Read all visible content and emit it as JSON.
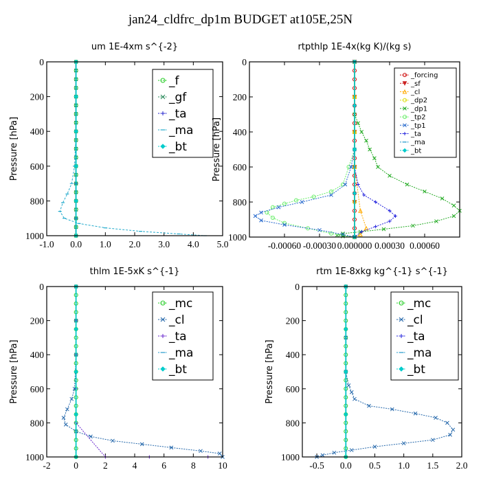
{
  "title": "jan24_cldfrc_dp1m  BUDGET at105E,25N",
  "chart_data": [
    {
      "type": "line",
      "title": "um  1E-4xm s^{-2}",
      "ylabel": "Pressure [hPa]",
      "xlim": [
        -1.0,
        5.0
      ],
      "xticks": [
        -1.0,
        0.0,
        1.0,
        2.0,
        3.0,
        4.0,
        5.0
      ],
      "xticklabels": [
        "-1.0",
        "0.0",
        "1.0",
        "2.0",
        "3.0",
        "4.0",
        "5.0"
      ],
      "ylim": [
        1000,
        0
      ],
      "yticks": [
        0,
        200,
        400,
        600,
        800,
        1000
      ],
      "legend_font": 17,
      "series": [
        {
          "name": "_f",
          "color": "#22cc22",
          "marker": "o",
          "x": [
            0,
            0,
            0,
            0,
            0,
            0,
            0,
            0,
            0,
            0,
            0,
            0,
            0,
            0,
            0,
            0,
            0,
            0,
            0,
            0,
            0
          ],
          "y": [
            0,
            50,
            100,
            150,
            200,
            250,
            300,
            350,
            400,
            450,
            500,
            550,
            600,
            650,
            700,
            750,
            800,
            850,
            900,
            950,
            1000
          ]
        },
        {
          "name": "_gf",
          "color": "#2a8a5a",
          "marker": "x",
          "x": [
            0,
            0,
            0,
            0,
            0,
            0,
            0,
            0,
            0,
            0,
            0,
            0,
            0,
            0,
            0,
            0,
            0,
            0,
            0,
            0,
            0
          ],
          "y": [
            0,
            50,
            100,
            150,
            200,
            250,
            300,
            350,
            400,
            450,
            500,
            550,
            600,
            650,
            700,
            750,
            800,
            850,
            900,
            950,
            1000
          ]
        },
        {
          "name": "_ta",
          "color": "#2222cc",
          "marker": "+",
          "x": [
            0,
            0,
            0,
            0,
            0,
            0,
            0,
            0
          ],
          "y": [
            0,
            200,
            400,
            600,
            700,
            800,
            900,
            1000
          ]
        },
        {
          "name": "_ma",
          "color": "#22aacc",
          "marker": "-",
          "x": [
            0,
            0,
            0,
            -0.05,
            -0.15,
            -0.3,
            -0.45,
            -0.55,
            -0.4,
            0.1,
            1.0,
            2.2,
            3.5,
            4.4
          ],
          "y": [
            0,
            200,
            400,
            600,
            700,
            760,
            810,
            860,
            900,
            930,
            955,
            975,
            990,
            1000
          ]
        },
        {
          "name": "_bt",
          "color": "#00cccc",
          "marker": "D",
          "x": [
            0,
            0,
            0,
            0,
            0,
            0
          ],
          "y": [
            0,
            200,
            400,
            600,
            800,
            1000
          ]
        }
      ]
    },
    {
      "type": "line",
      "title": "rtpthlp  1E-4x(kg K)/(kg s)",
      "ylabel": "Pressure [hPa]",
      "xlim": [
        -0.0009,
        0.0009
      ],
      "xticks": [
        -0.0006,
        -0.0003,
        0.0,
        0.0003,
        0.0006
      ],
      "xticklabels": [
        "-0.00060",
        "-0.00030",
        "0.000000",
        "0.00030",
        "0.00060"
      ],
      "ylim": [
        1000,
        0
      ],
      "yticks": [
        0,
        200,
        400,
        600,
        800,
        1000
      ],
      "legend_font": 10,
      "series": [
        {
          "name": "_forcing",
          "color": "#cc0000",
          "marker": "o",
          "x": [
            0,
            0,
            0,
            0,
            0,
            0,
            0,
            0,
            0,
            0,
            0,
            0,
            0,
            0,
            0,
            0,
            0,
            0,
            0,
            0,
            0
          ],
          "y": [
            0,
            50,
            100,
            150,
            200,
            250,
            300,
            350,
            400,
            450,
            500,
            550,
            600,
            650,
            700,
            750,
            800,
            850,
            900,
            950,
            1000
          ]
        },
        {
          "name": "_sf",
          "color": "#cc2222",
          "marker": "v",
          "x": [
            0,
            0,
            0,
            0,
            0,
            0
          ],
          "y": [
            0,
            200,
            400,
            600,
            800,
            1000
          ]
        },
        {
          "name": "_cl",
          "color": "#ffaa00",
          "marker": "^",
          "x": [
            0,
            0,
            0,
            0,
            5e-05,
            0.0001,
            5e-05,
            0
          ],
          "y": [
            0,
            200,
            400,
            600,
            850,
            950,
            985,
            1000
          ]
        },
        {
          "name": "_dp2",
          "color": "#dddd00",
          "marker": "o",
          "x": [
            0,
            0,
            0,
            0,
            0,
            0
          ],
          "y": [
            0,
            200,
            400,
            600,
            800,
            1000
          ]
        },
        {
          "name": "_dp1",
          "color": "#22aa22",
          "marker": "x",
          "x": [
            0,
            0,
            3e-05,
            6e-05,
            0.0001,
            0.00013,
            0.00017,
            0.0002,
            0.0003,
            0.00045,
            0.0006,
            0.00075,
            0.00085,
            0.0009,
            0.00085,
            0.0007,
            0.0005,
            0.00025,
            5e-05,
            -0.0001,
            -0.00015,
            -0.0001,
            0
          ],
          "y": [
            0,
            300,
            350,
            400,
            450,
            500,
            550,
            600,
            650,
            700,
            740,
            780,
            820,
            850,
            880,
            910,
            935,
            955,
            970,
            980,
            990,
            996,
            1000
          ]
        },
        {
          "name": "_tp2",
          "color": "#66ee66",
          "marker": "o",
          "x": [
            0,
            0,
            -5e-05,
            -0.0001,
            -0.0002,
            -0.00035,
            -0.0005,
            -0.0006,
            -0.0007,
            -0.00075,
            -0.0007,
            -0.0006,
            -0.0004,
            -0.0002,
            0
          ],
          "y": [
            0,
            500,
            600,
            700,
            740,
            770,
            790,
            810,
            830,
            860,
            890,
            920,
            950,
            980,
            1000
          ]
        },
        {
          "name": "_tp1",
          "color": "#2266cc",
          "marker": "x",
          "x": [
            0,
            0,
            -3e-05,
            -8e-05,
            -0.0002,
            -0.00045,
            -0.00065,
            -0.0008,
            -0.00085,
            -0.0008,
            -0.0006,
            -0.0003,
            -0.0001,
            0
          ],
          "y": [
            0,
            500,
            600,
            700,
            760,
            800,
            830,
            860,
            880,
            905,
            930,
            960,
            985,
            1000
          ]
        },
        {
          "name": "_ta",
          "color": "#2222dd",
          "marker": "+",
          "x": [
            0,
            0,
            3e-05,
            8e-05,
            0.00018,
            0.0003,
            0.00035,
            0.0003,
            0.00018,
            6e-05,
            0
          ],
          "y": [
            0,
            600,
            700,
            760,
            800,
            850,
            880,
            910,
            940,
            970,
            1000
          ]
        },
        {
          "name": "_ma",
          "color": "#2299cc",
          "marker": "-",
          "x": [
            0,
            0,
            0,
            0,
            0
          ],
          "y": [
            0,
            250,
            500,
            750,
            1000
          ]
        },
        {
          "name": "_bt",
          "color": "#00cccc",
          "marker": "D",
          "x": [
            0,
            0,
            0,
            0,
            0
          ],
          "y": [
            0,
            250,
            500,
            750,
            1000
          ]
        }
      ]
    },
    {
      "type": "line",
      "title": "thlm  1E-5xK s^{-1}",
      "ylabel": "Pressure [hPa]",
      "xlim": [
        -2,
        10
      ],
      "xticks": [
        -2,
        0,
        2,
        4,
        6,
        8,
        10
      ],
      "xticklabels": [
        "-2",
        "0",
        "2",
        "4",
        "6",
        "8",
        "10"
      ],
      "ylim": [
        1000,
        0
      ],
      "yticks": [
        0,
        200,
        400,
        600,
        800,
        1000
      ],
      "legend_font": 17,
      "series": [
        {
          "name": "_mc",
          "color": "#22cc22",
          "marker": "o",
          "x": [
            0,
            0,
            0,
            0,
            0,
            0,
            0,
            0,
            0,
            0,
            0,
            0,
            0,
            0,
            0,
            0,
            0,
            0,
            0,
            0,
            0
          ],
          "y": [
            0,
            50,
            100,
            150,
            200,
            250,
            300,
            350,
            400,
            450,
            500,
            550,
            600,
            650,
            700,
            750,
            800,
            850,
            900,
            950,
            1000
          ]
        },
        {
          "name": "_cl",
          "color": "#2266aa",
          "marker": "x",
          "x": [
            0,
            0,
            0,
            -0.1,
            -0.3,
            -0.6,
            -0.85,
            -0.7,
            0,
            1,
            2.5,
            4.5,
            6.5,
            8.5,
            9.8,
            10
          ],
          "y": [
            0,
            200,
            400,
            600,
            660,
            720,
            770,
            810,
            850,
            880,
            905,
            925,
            945,
            965,
            980,
            1000
          ]
        },
        {
          "name": "_ta",
          "color": "#6622cc",
          "marker": "+",
          "x": [
            0,
            0,
            0,
            0,
            0,
            2,
            5,
            9
          ],
          "y": [
            0,
            200,
            400,
            600,
            800,
            1000,
            1000,
            1000
          ]
        },
        {
          "name": "_ma",
          "color": "#2299cc",
          "marker": "-",
          "x": [
            0,
            0,
            0,
            0,
            0
          ],
          "y": [
            0,
            250,
            500,
            750,
            1000
          ]
        },
        {
          "name": "_bt",
          "color": "#00cccc",
          "marker": "D",
          "x": [
            0,
            0,
            0,
            0,
            0
          ],
          "y": [
            0,
            250,
            500,
            750,
            1000
          ]
        }
      ]
    },
    {
      "type": "line",
      "title": "rtm  1E-8xkg kg^{-1} s^{-1}",
      "ylabel": "Pressure [hPa]",
      "xlim": [
        -0.75,
        2.0
      ],
      "xticks": [
        -0.5,
        0.0,
        0.5,
        1.0,
        1.5,
        2.0
      ],
      "xticklabels": [
        "-0.5",
        "0.0",
        "0.5",
        "1.0",
        "1.5",
        "2.0"
      ],
      "ylim": [
        1000,
        0
      ],
      "yticks": [
        0,
        200,
        400,
        600,
        800,
        1000
      ],
      "legend_font": 17,
      "series": [
        {
          "name": "_mc",
          "color": "#22cc22",
          "marker": "o",
          "x": [
            0,
            0,
            0,
            0,
            0,
            0,
            0,
            0,
            0,
            0,
            0,
            0,
            0,
            0,
            0,
            0,
            0,
            0,
            0,
            0,
            0
          ],
          "y": [
            0,
            50,
            100,
            150,
            200,
            250,
            300,
            350,
            400,
            450,
            500,
            550,
            600,
            650,
            700,
            750,
            800,
            850,
            900,
            950,
            1000
          ]
        },
        {
          "name": "_cl",
          "color": "#2266aa",
          "marker": "x",
          "x": [
            0,
            0,
            0,
            0.05,
            0.1,
            0.15,
            0.4,
            0.8,
            1.2,
            1.55,
            1.75,
            1.85,
            1.8,
            1.5,
            1.0,
            0.5,
            0.1,
            -0.2,
            -0.4,
            -0.5
          ],
          "y": [
            0,
            300,
            500,
            580,
            620,
            660,
            700,
            720,
            745,
            770,
            800,
            840,
            870,
            900,
            920,
            940,
            960,
            975,
            990,
            1000
          ]
        },
        {
          "name": "_ta",
          "color": "#2222dd",
          "marker": "+",
          "x": [
            0,
            0,
            0,
            0,
            0
          ],
          "y": [
            0,
            250,
            500,
            750,
            1000
          ]
        },
        {
          "name": "_ma",
          "color": "#2299cc",
          "marker": "-",
          "x": [
            0,
            0,
            0,
            0,
            0
          ],
          "y": [
            0,
            250,
            500,
            750,
            1000
          ]
        },
        {
          "name": "_bt",
          "color": "#00cccc",
          "marker": "D",
          "x": [
            0,
            0,
            0,
            0,
            0
          ],
          "y": [
            0,
            250,
            500,
            750,
            1000
          ]
        }
      ]
    }
  ]
}
